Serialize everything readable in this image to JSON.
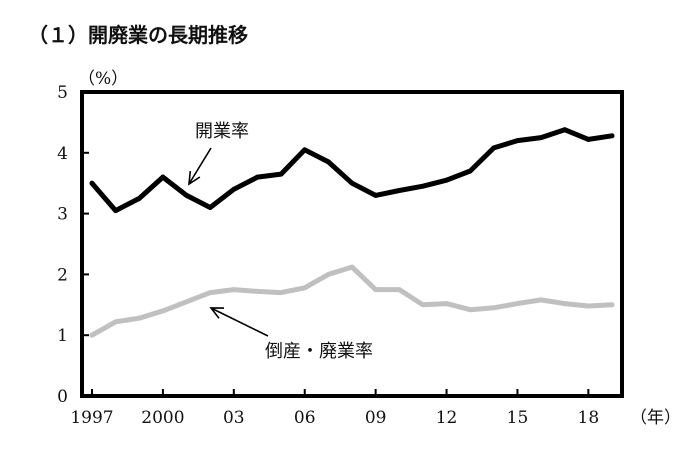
{
  "chart_data": {
    "type": "line",
    "title": "（１）開廃業の長期推移",
    "ylabel": "（%）",
    "xlabel": "（年）",
    "ylim": [
      0,
      5
    ],
    "yticks": [
      "0",
      "1",
      "2",
      "3",
      "4",
      "5"
    ],
    "x": [
      1997,
      1998,
      1999,
      2000,
      2001,
      2002,
      2003,
      2004,
      2005,
      2006,
      2007,
      2008,
      2009,
      2010,
      2011,
      2012,
      2013,
      2014,
      2015,
      2016,
      2017,
      2018,
      2019
    ],
    "xticks": [
      {
        "x": 1997,
        "label": "1997"
      },
      {
        "x": 2000,
        "label": "2000"
      },
      {
        "x": 2003,
        "label": "03"
      },
      {
        "x": 2006,
        "label": "06"
      },
      {
        "x": 2009,
        "label": "09"
      },
      {
        "x": 2012,
        "label": "12"
      },
      {
        "x": 2015,
        "label": "15"
      },
      {
        "x": 2018,
        "label": "18"
      }
    ],
    "grid": false,
    "series": [
      {
        "name": "開業率",
        "color": "#000000",
        "values": [
          3.5,
          3.05,
          3.25,
          3.6,
          3.3,
          3.1,
          3.4,
          3.6,
          3.65,
          4.05,
          3.85,
          3.5,
          3.3,
          3.38,
          3.45,
          3.55,
          3.7,
          4.08,
          4.2,
          4.25,
          4.38,
          4.22,
          4.28
        ]
      },
      {
        "name": "倒産・廃業率",
        "color": "#c0c0c0",
        "values": [
          1.0,
          1.22,
          1.28,
          1.4,
          1.55,
          1.7,
          1.75,
          1.72,
          1.7,
          1.78,
          2.0,
          2.12,
          1.75,
          1.75,
          1.5,
          1.52,
          1.42,
          1.45,
          1.52,
          1.58,
          1.52,
          1.48,
          1.5
        ]
      }
    ],
    "annotations": [
      {
        "text": "開業率",
        "series": 0
      },
      {
        "text": "倒産・廃業率",
        "series": 1
      }
    ]
  }
}
